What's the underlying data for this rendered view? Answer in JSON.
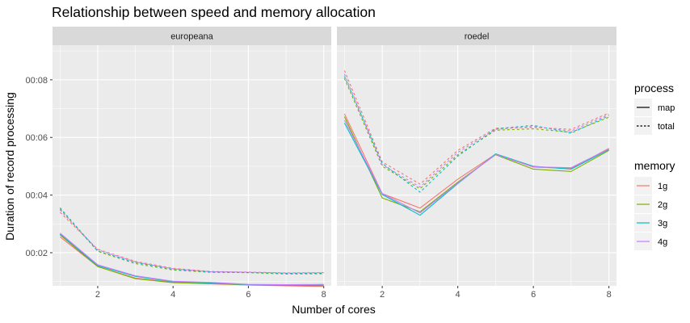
{
  "chart_data": {
    "type": "line",
    "title": "Relationship between speed and memory allocation",
    "xlabel": "Number of cores",
    "ylabel": "Duration of record processing",
    "x": [
      1,
      2,
      3,
      4,
      5,
      6,
      7,
      8
    ],
    "x_ticks": [
      2,
      4,
      6,
      8
    ],
    "xlim": [
      0.8,
      8.2
    ],
    "y_ticks": [
      {
        "value": 2,
        "label": "00:02"
      },
      {
        "value": 4,
        "label": "00:04"
      },
      {
        "value": 6,
        "label": "00:06"
      },
      {
        "value": 8,
        "label": "00:08"
      }
    ],
    "ylim": [
      0.85,
      9.2
    ],
    "grid": true,
    "facets": [
      {
        "label": "europeana",
        "series": [
          {
            "memory": "1g",
            "process": "map",
            "values": [
              2.55,
              1.52,
              1.12,
              0.97,
              0.92,
              0.88,
              0.85,
              0.83
            ]
          },
          {
            "memory": "2g",
            "process": "map",
            "values": [
              2.62,
              1.52,
              1.1,
              0.96,
              0.93,
              0.89,
              0.87,
              0.86
            ]
          },
          {
            "memory": "3g",
            "process": "map",
            "values": [
              2.65,
              1.55,
              1.18,
              0.99,
              0.95,
              0.89,
              0.87,
              0.88
            ]
          },
          {
            "memory": "4g",
            "process": "map",
            "values": [
              2.68,
              1.58,
              1.2,
              1.01,
              0.97,
              0.9,
              0.89,
              0.9
            ]
          },
          {
            "memory": "1g",
            "process": "total",
            "values": [
              3.4,
              2.12,
              1.7,
              1.46,
              1.35,
              1.32,
              1.29,
              1.3
            ]
          },
          {
            "memory": "2g",
            "process": "total",
            "values": [
              3.52,
              2.05,
              1.62,
              1.4,
              1.32,
              1.31,
              1.26,
              1.27
            ]
          },
          {
            "memory": "3g",
            "process": "total",
            "values": [
              3.56,
              2.06,
              1.66,
              1.42,
              1.33,
              1.31,
              1.28,
              1.29
            ]
          },
          {
            "memory": "4g",
            "process": "total",
            "values": [
              3.48,
              2.1,
              1.68,
              1.44,
              1.34,
              1.33,
              1.3,
              1.31
            ]
          }
        ]
      },
      {
        "label": "roedel",
        "series": [
          {
            "memory": "1g",
            "process": "map",
            "values": [
              6.82,
              4.05,
              3.55,
              4.55,
              5.42,
              4.97,
              4.92,
              5.62
            ]
          },
          {
            "memory": "2g",
            "process": "map",
            "values": [
              6.72,
              3.9,
              3.42,
              4.45,
              5.4,
              4.9,
              4.82,
              5.55
            ]
          },
          {
            "memory": "3g",
            "process": "map",
            "values": [
              6.5,
              4.02,
              3.3,
              4.4,
              5.43,
              5.0,
              4.9,
              5.58
            ]
          },
          {
            "memory": "4g",
            "process": "map",
            "values": [
              6.6,
              4.05,
              3.38,
              4.42,
              5.41,
              4.98,
              4.95,
              5.6
            ]
          },
          {
            "memory": "1g",
            "process": "total",
            "values": [
              8.32,
              5.15,
              4.38,
              5.55,
              6.32,
              6.35,
              6.28,
              6.85
            ]
          },
          {
            "memory": "2g",
            "process": "total",
            "values": [
              8.05,
              5.0,
              4.22,
              5.4,
              6.25,
              6.3,
              6.18,
              6.7
            ]
          },
          {
            "memory": "3g",
            "process": "total",
            "values": [
              8.12,
              5.1,
              4.1,
              5.35,
              6.3,
              6.42,
              6.15,
              6.75
            ]
          },
          {
            "memory": "4g",
            "process": "total",
            "values": [
              8.2,
              5.05,
              4.28,
              5.48,
              6.28,
              6.38,
              6.22,
              6.8
            ]
          }
        ]
      }
    ],
    "legends": [
      {
        "title": "process",
        "placement": "right",
        "entries": [
          {
            "label": "map",
            "linetype": "solid"
          },
          {
            "label": "total",
            "linetype": "dashed"
          }
        ]
      },
      {
        "title": "memory",
        "placement": "right",
        "entries": [
          {
            "label": "1g",
            "color": "#F8766D"
          },
          {
            "label": "2g",
            "color": "#7CAE00"
          },
          {
            "label": "3g",
            "color": "#00BFC4"
          },
          {
            "label": "4g",
            "color": "#C77CFF"
          }
        ]
      }
    ]
  },
  "colors": {
    "panel_background": "#EBEBEB",
    "strip_background": "#D9D9D9",
    "grid_major": "#FFFFFF",
    "1g": "#F8766D",
    "2g": "#7CAE00",
    "3g": "#00BFC4",
    "4g": "#C77CFF"
  }
}
